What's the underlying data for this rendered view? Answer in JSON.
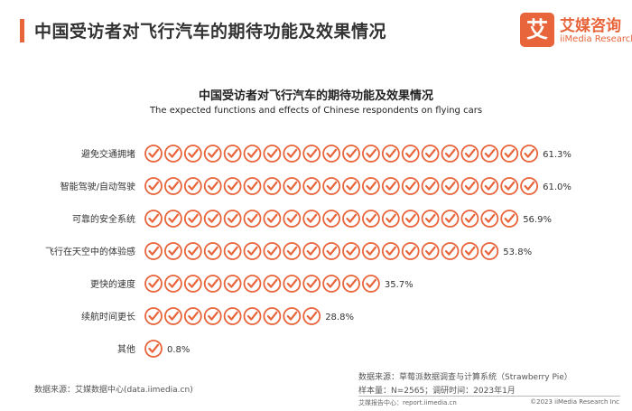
{
  "header": {
    "title": "中国受访者对飞行汽车的期待功能及效果情况",
    "logo_mark": "艾",
    "logo_cn": "艾媒咨询",
    "logo_en": "iiMedia Research"
  },
  "colors": {
    "accent": "#e8643a"
  },
  "icon": "check-circle-icon",
  "chart_data": {
    "type": "bar",
    "title": "中国受访者对飞行汽车的期待功能及效果情况",
    "subtitle": "The expected functions and effects of Chinese respondents on flying cars",
    "categories": [
      "避免交通拥堵",
      "智能驾驶/自动驾驶",
      "可靠的安全系统",
      "飞行在天空中的体验感",
      "更快的速度",
      "续航时间更长",
      "其他"
    ],
    "values": [
      61.3,
      61.0,
      56.9,
      53.8,
      35.7,
      28.8,
      0.8
    ],
    "value_labels": [
      "61.3%",
      "61.0%",
      "56.9%",
      "53.8%",
      "35.7%",
      "28.8%",
      "0.8%"
    ],
    "xlim": [
      0,
      61.3
    ],
    "grid": false
  },
  "footer": {
    "source_left": "数据来源：艾媒数据中心(data.iimedia.cn)",
    "source_right": "数据来源：草莓派数据调查与计算系统（Strawberry Pie）",
    "sample": "样本量：N=2565；调研时间：2023年1月",
    "center_link": "艾媒报告中心：report.iimedia.cn",
    "copyright": "©2023  iiMedia Research  Inc"
  }
}
